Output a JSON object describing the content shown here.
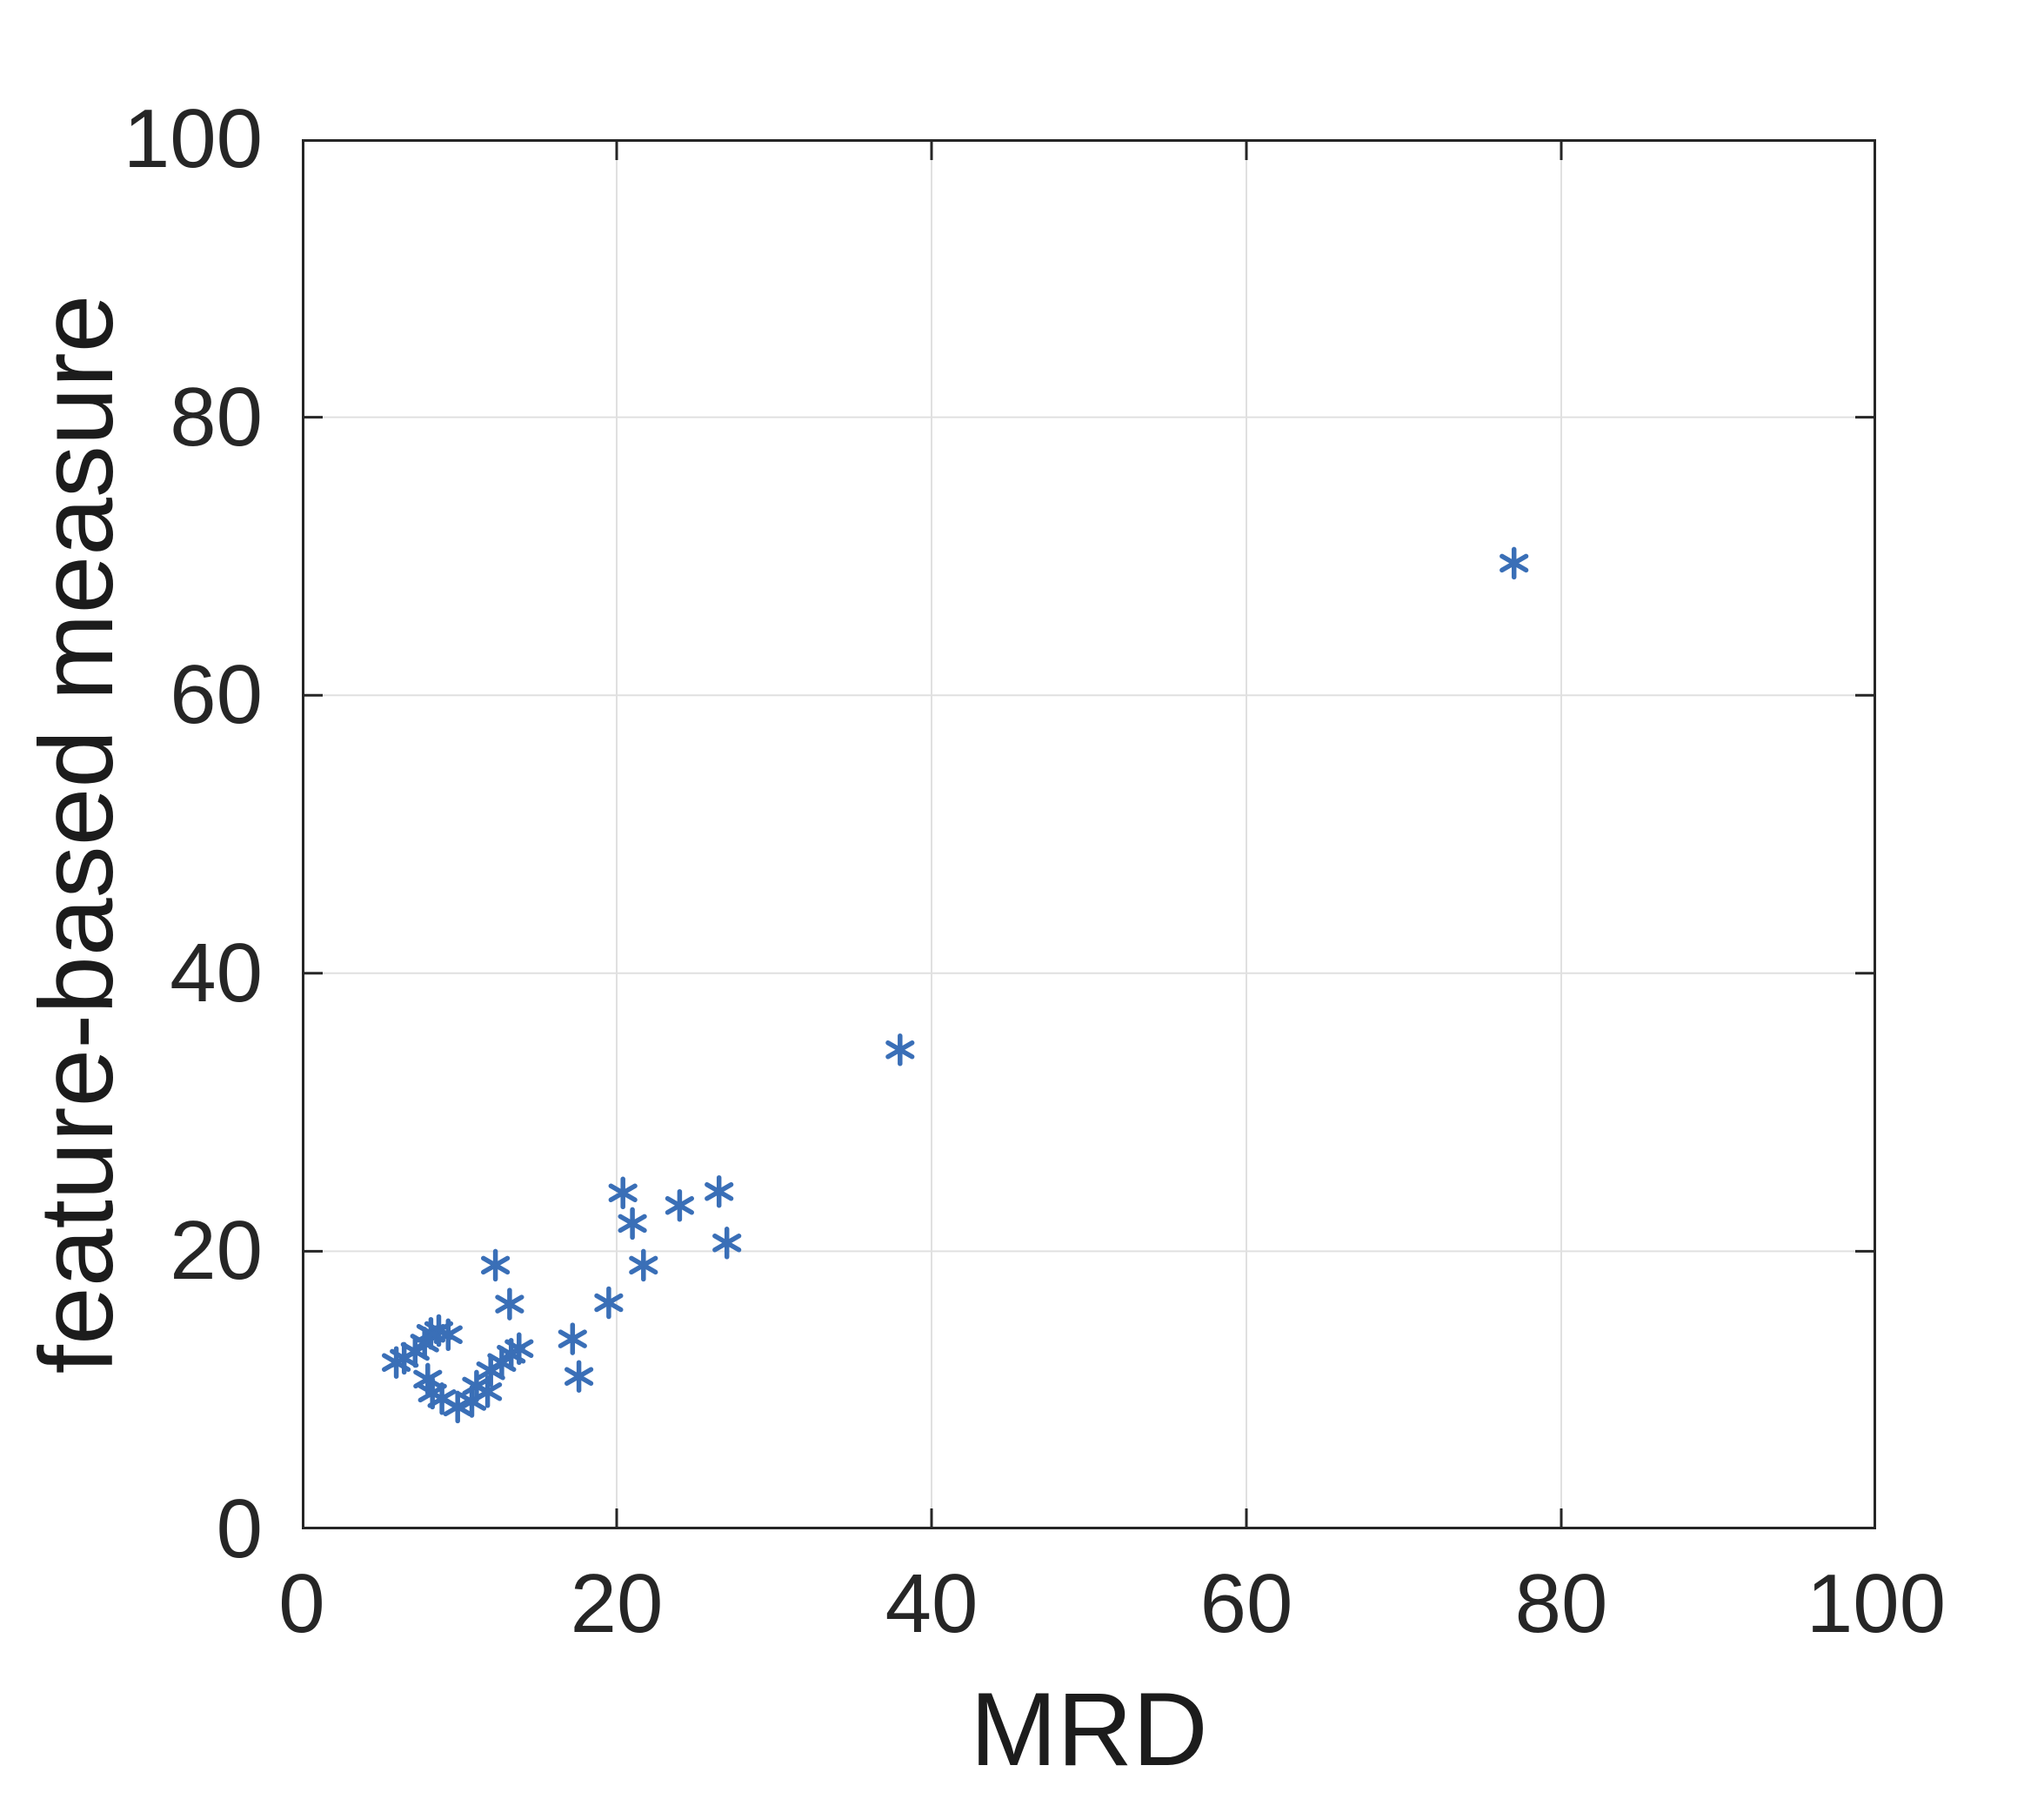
{
  "figure": {
    "background": "#ffffff"
  },
  "chart_data": {
    "type": "scatter",
    "title": "",
    "xlabel": "MRD",
    "ylabel": "feature-based measure",
    "xlim": [
      0,
      100
    ],
    "ylim": [
      0,
      100
    ],
    "xticks": [
      0,
      20,
      40,
      60,
      80,
      100
    ],
    "yticks": [
      0,
      20,
      40,
      60,
      80,
      100
    ],
    "grid": true,
    "legend_position": "none",
    "marker": "asterisk",
    "colors": {
      "marker": "#3a6fb7",
      "axis": "#262626",
      "grid": "#e0e0e0",
      "tick_label": "#262626",
      "axis_label": "#1c1c1c"
    },
    "points": [
      [
        6.0,
        12.0
      ],
      [
        6.5,
        12.3
      ],
      [
        7.2,
        12.8
      ],
      [
        7.8,
        13.4
      ],
      [
        8.2,
        14.1
      ],
      [
        8.7,
        14.3
      ],
      [
        9.3,
        14.0
      ],
      [
        8.0,
        10.8
      ],
      [
        8.3,
        9.8
      ],
      [
        8.9,
        9.4
      ],
      [
        9.9,
        8.8
      ],
      [
        10.8,
        9.2
      ],
      [
        11.1,
        10.3
      ],
      [
        11.8,
        9.9
      ],
      [
        12.0,
        11.4
      ],
      [
        12.7,
        12.0
      ],
      [
        13.3,
        12.6
      ],
      [
        13.8,
        13.0
      ],
      [
        12.3,
        19.0
      ],
      [
        13.2,
        16.2
      ],
      [
        17.2,
        13.7
      ],
      [
        17.6,
        11.0
      ],
      [
        19.5,
        16.3
      ],
      [
        20.4,
        24.2
      ],
      [
        21.0,
        22.0
      ],
      [
        21.7,
        19.0
      ],
      [
        24.0,
        23.3
      ],
      [
        26.5,
        24.3
      ],
      [
        27.0,
        20.6
      ],
      [
        38.0,
        34.5
      ],
      [
        77.0,
        69.5
      ]
    ]
  }
}
